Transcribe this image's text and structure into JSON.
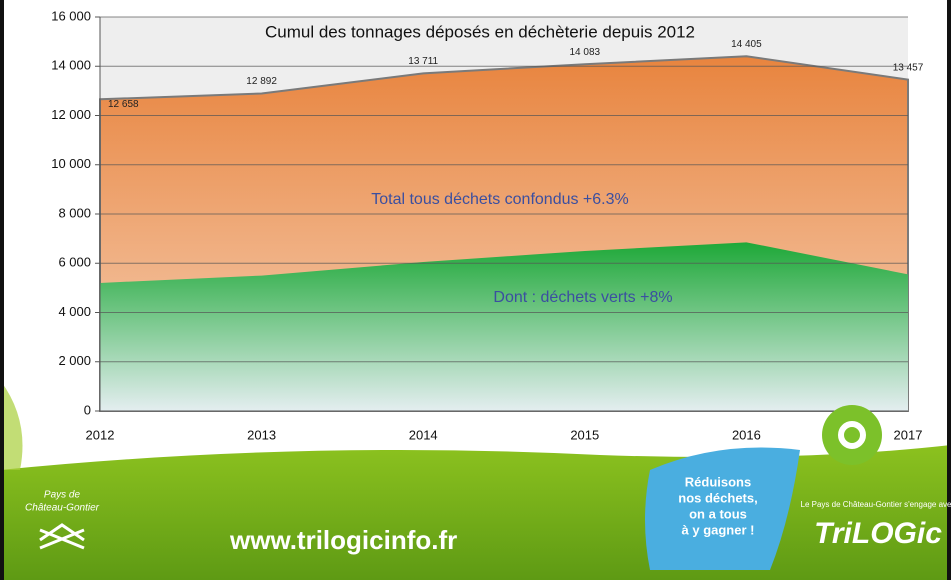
{
  "chart_data": {
    "type": "area",
    "title": "Cumul des tonnages déposés en déchèterie depuis 2012",
    "categories": [
      "2012",
      "2013",
      "2014",
      "2015",
      "2016",
      "2017"
    ],
    "series": [
      {
        "color": "#e8914f",
        "values": [
          12658,
          12892,
          13711,
          14083,
          14405,
          13457
        ],
        "value_labels": [
          "12 658",
          "12 892",
          "13 711",
          "14 083",
          "14 405",
          "13 457"
        ]
      },
      {
        "color": "#22a83a",
        "values": [
          5200,
          5500,
          6050,
          6500,
          6850,
          5550
        ]
      }
    ],
    "annotations": [
      "Total tous déchets confondus +6.3%",
      "Dont : déchets verts +8%"
    ],
    "ylim": [
      0,
      16000
    ],
    "yticks": [
      0,
      {
        "value": 2000,
        "label": "2 000"
      },
      {
        "value": 4000,
        "label": "4 000"
      },
      {
        "value": 6000,
        "label": "6 000"
      },
      {
        "value": 8000,
        "label": "8 000"
      },
      {
        "value": 10000,
        "label": "10 000"
      },
      {
        "value": 12000,
        "label": "12 000"
      },
      {
        "value": 14000,
        "label": "14 000"
      },
      {
        "value": 16000,
        "label": "16 000"
      }
    ],
    "grid": true
  },
  "footer": {
    "url": "www.trilogicinfo.fr",
    "slogan": [
      "Réduisons",
      "nos déchets,",
      "on a tous",
      "à y gagner !"
    ],
    "brand": "TriLOGic",
    "brand_tagline": "Le Pays de Château-Gontier s'engage avec",
    "pays": [
      "Pays de",
      "Château-Gontier"
    ]
  }
}
